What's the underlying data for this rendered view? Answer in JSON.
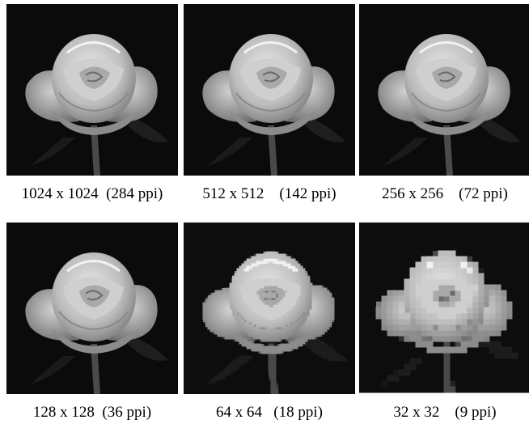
{
  "panels": [
    {
      "caption": "1024 x 1024  (284 ppi)"
    },
    {
      "caption": "512 x 512    (142 ppi)"
    },
    {
      "caption": "256 x 256    (72 ppi)"
    },
    {
      "caption": "128 x 128  (36 ppi)"
    },
    {
      "caption": "64 x 64   (18 ppi)"
    },
    {
      "caption": "32 x 32    (9 ppi)"
    }
  ]
}
